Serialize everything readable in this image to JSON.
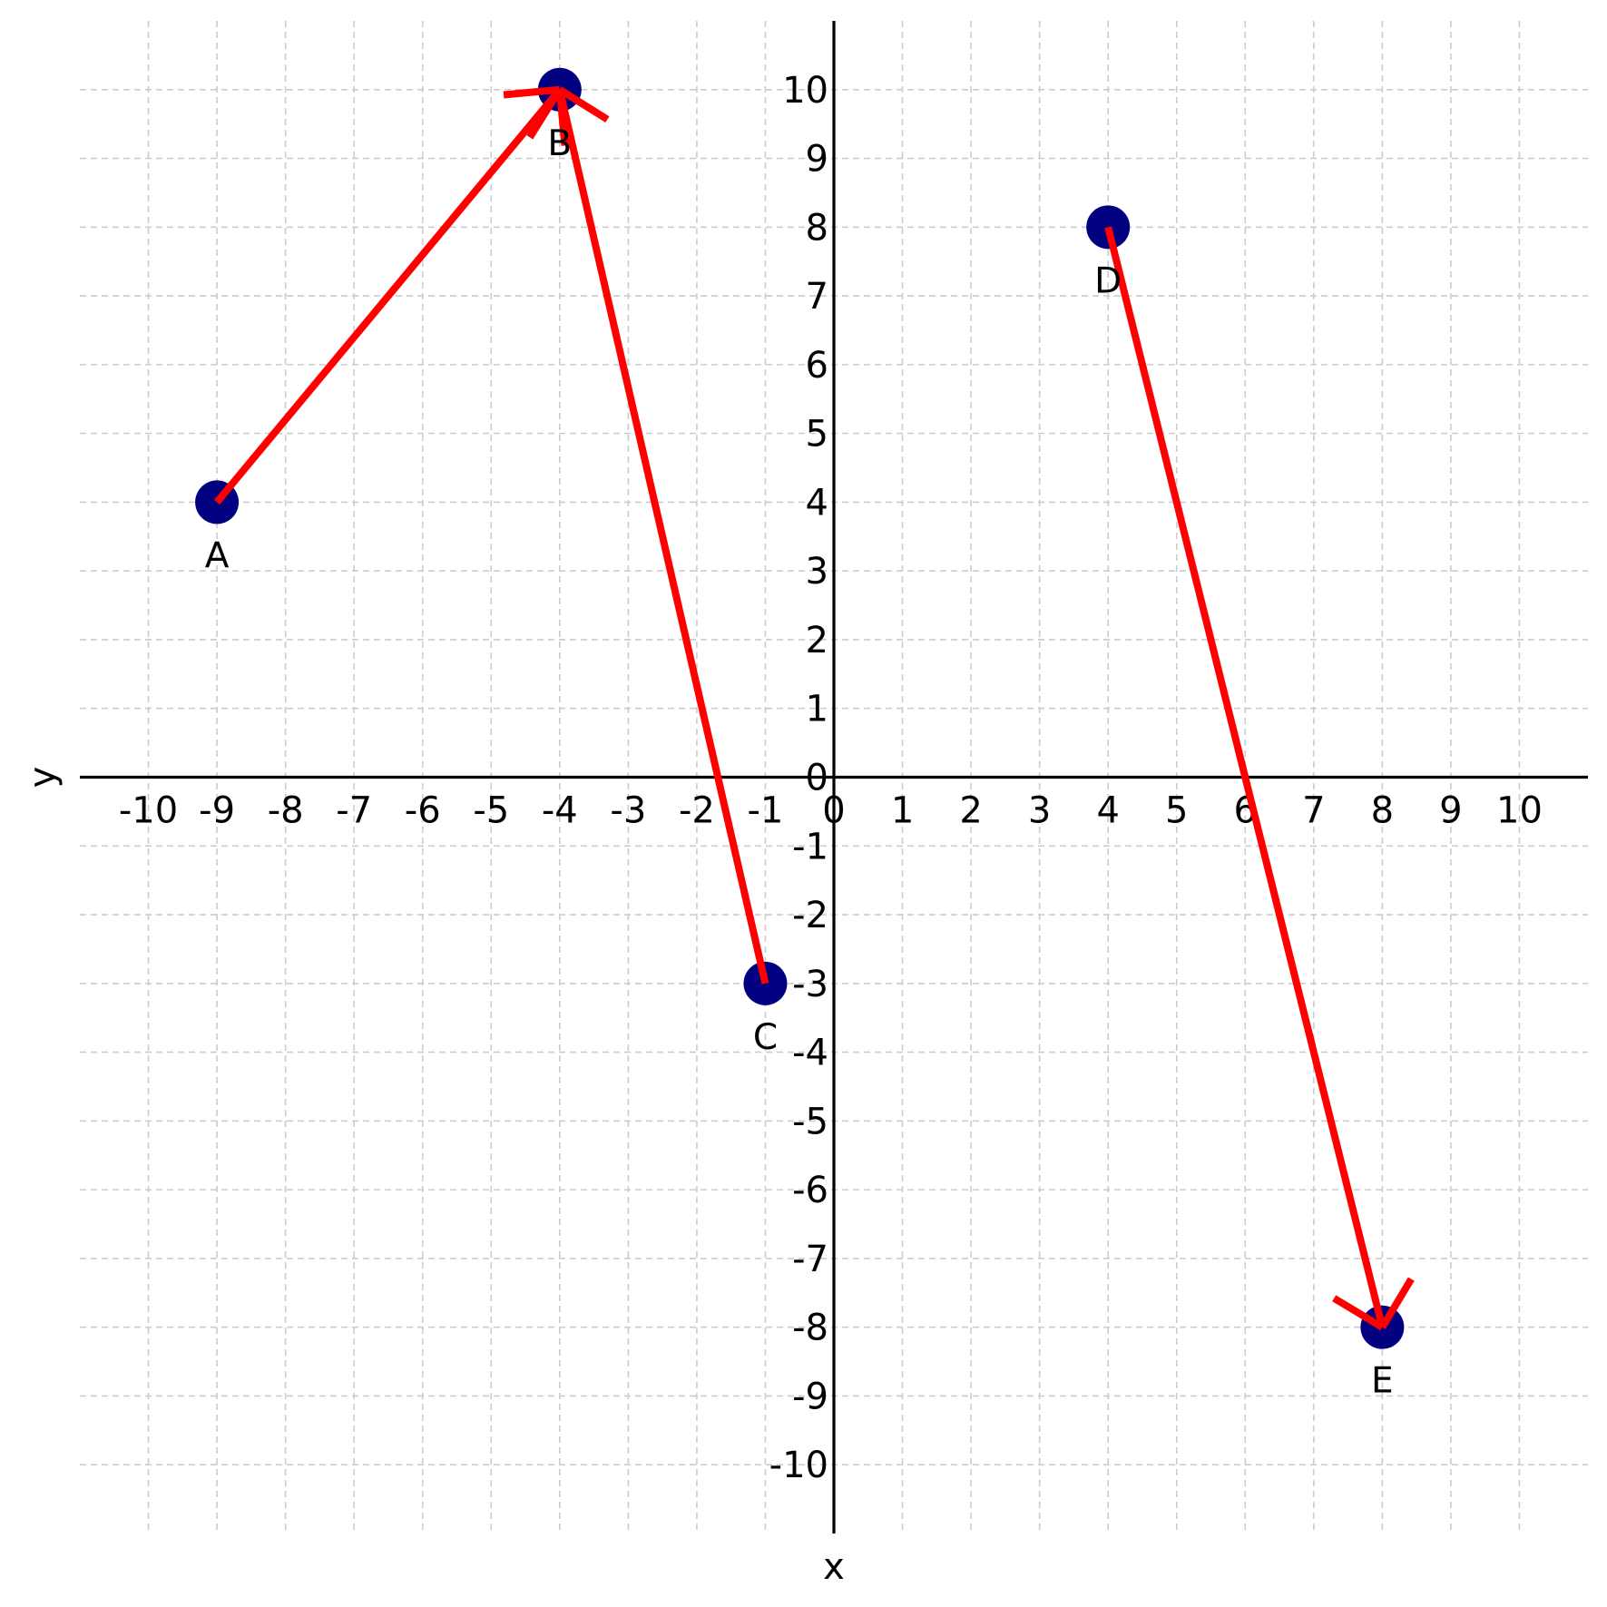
{
  "chart_data": {
    "type": "scatter",
    "xlabel": "x",
    "ylabel": "y",
    "xlim": [
      -11,
      11
    ],
    "ylim": [
      -11,
      11
    ],
    "grid": true,
    "x_ticks": [
      -10,
      -9,
      -8,
      -7,
      -6,
      -5,
      -4,
      -3,
      -2,
      -1,
      0,
      1,
      2,
      3,
      4,
      5,
      6,
      7,
      8,
      9,
      10
    ],
    "y_ticks": [
      -10,
      -9,
      -8,
      -7,
      -6,
      -5,
      -4,
      -3,
      -2,
      -1,
      0,
      1,
      2,
      3,
      4,
      5,
      6,
      7,
      8,
      9,
      10
    ],
    "points": [
      {
        "label": "A",
        "x": -9,
        "y": 4
      },
      {
        "label": "B",
        "x": -4,
        "y": 10
      },
      {
        "label": "C",
        "x": -1,
        "y": -3
      },
      {
        "label": "D",
        "x": 4,
        "y": 8
      },
      {
        "label": "E",
        "x": 8,
        "y": -8
      }
    ],
    "vectors": [
      {
        "from": "A",
        "to": "B",
        "arrowhead": "end"
      },
      {
        "from": "C",
        "to": "B",
        "arrowhead": "end"
      },
      {
        "from": "D",
        "to": "E",
        "arrowhead": "end"
      }
    ],
    "colors": {
      "point": "#000080",
      "vector": "#ff0000",
      "axis": "#000000",
      "grid": "#cccccc"
    }
  }
}
